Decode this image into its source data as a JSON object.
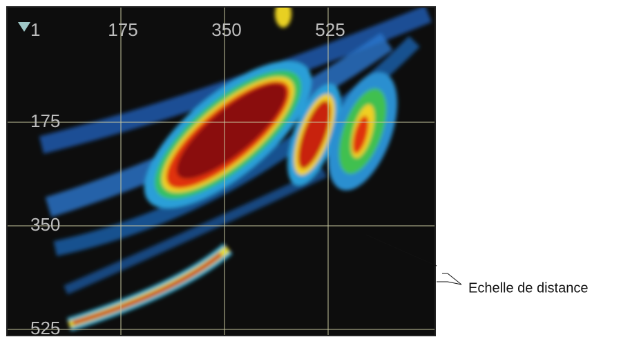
{
  "screen": {
    "mode_label": "1",
    "top_scale": [
      "175",
      "350",
      "525"
    ],
    "left_scale": [
      "175",
      "350",
      "525"
    ]
  },
  "callouts": [
    {
      "label": "Echelle de distance"
    }
  ]
}
